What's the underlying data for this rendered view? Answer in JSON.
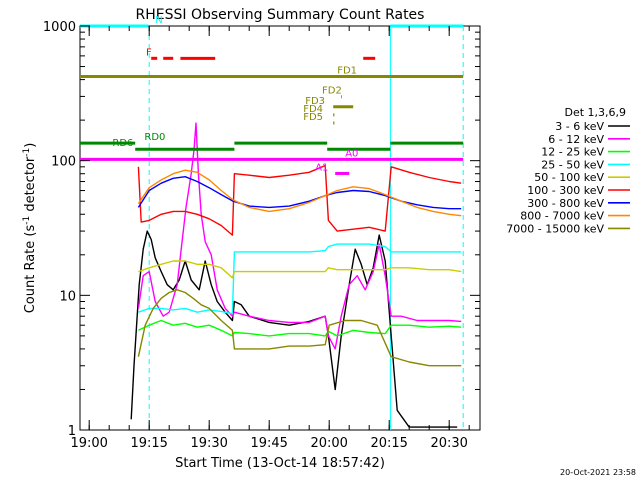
{
  "chart_data": {
    "type": "line",
    "title": "RHESSI Observing Summary Count Rates",
    "xlabel": "Start Time (13-Oct-14 18:57:42)",
    "ylabel_main": "Count Rate (s",
    "ylabel_sup1": "-1",
    "ylabel_mid": " detector",
    "ylabel_sup2": "-1",
    "ylabel_end": ")",
    "y_scale": "log",
    "ylim": [
      1,
      1000
    ],
    "x_minutes_range": [
      -2.3,
      97.7
    ],
    "y_ticks": [
      {
        "v": 1,
        "label": "1"
      },
      {
        "v": 10,
        "label": "10"
      },
      {
        "v": 100,
        "label": "100"
      },
      {
        "v": 1000,
        "label": "1000"
      }
    ],
    "x_ticks": [
      {
        "m": 0,
        "label": "19:00"
      },
      {
        "m": 15,
        "label": "19:15"
      },
      {
        "m": 30,
        "label": "19:30"
      },
      {
        "m": 45,
        "label": "19:45"
      },
      {
        "m": 60,
        "label": "20:00"
      },
      {
        "m": 75,
        "label": "20:15"
      },
      {
        "m": 90,
        "label": "20:30"
      }
    ],
    "legend_title": "Det 1,3,6,9",
    "legend_position": "right",
    "series": [
      {
        "name": "3 - 6 keV",
        "color": "#000000",
        "pts": [
          [
            10.5,
            1.2
          ],
          [
            11.2,
            3
          ],
          [
            12.5,
            12
          ],
          [
            13.5,
            22
          ],
          [
            14.5,
            30
          ],
          [
            15.5,
            26
          ],
          [
            16.5,
            19
          ],
          [
            18,
            15
          ],
          [
            19.5,
            12
          ],
          [
            21,
            11
          ],
          [
            22.5,
            13
          ],
          [
            24,
            18
          ],
          [
            25.5,
            13
          ],
          [
            27.5,
            11
          ],
          [
            29,
            18
          ],
          [
            30.5,
            12
          ],
          [
            32,
            9
          ],
          [
            34,
            7.5
          ],
          [
            35.8,
            6.5
          ],
          [
            36.3,
            9
          ],
          [
            38,
            8.5
          ],
          [
            40,
            7
          ],
          [
            45,
            6.3
          ],
          [
            50,
            6
          ],
          [
            55,
            6.4
          ],
          [
            59,
            7
          ],
          [
            59.8,
            5
          ],
          [
            61.5,
            2
          ],
          [
            63,
            5
          ],
          [
            65,
            12
          ],
          [
            66.5,
            22
          ],
          [
            68,
            17
          ],
          [
            69.5,
            12
          ],
          [
            71,
            16
          ],
          [
            72.5,
            28
          ],
          [
            74,
            18
          ],
          [
            75.5,
            5
          ],
          [
            77,
            1.4
          ],
          [
            80,
            1.05
          ],
          [
            84,
            1.05
          ],
          [
            88,
            1.05
          ],
          [
            92,
            1.05
          ]
        ]
      },
      {
        "name": "6 - 12 keV",
        "color": "#ff00ff",
        "pts": [
          [
            12.3,
            8
          ],
          [
            13.5,
            14
          ],
          [
            15,
            15
          ],
          [
            16.5,
            9
          ],
          [
            18.5,
            7
          ],
          [
            20,
            7.5
          ],
          [
            22,
            12
          ],
          [
            23,
            22
          ],
          [
            24.2,
            45
          ],
          [
            25.5,
            80
          ],
          [
            26.2,
            120
          ],
          [
            26.7,
            190
          ],
          [
            27.3,
            80
          ],
          [
            28,
            40
          ],
          [
            29,
            25
          ],
          [
            30.5,
            20
          ],
          [
            32,
            11
          ],
          [
            34,
            8
          ],
          [
            35.8,
            7
          ],
          [
            36.3,
            7.5
          ],
          [
            40,
            7
          ],
          [
            45,
            6.5
          ],
          [
            50,
            6.3
          ],
          [
            55,
            6.3
          ],
          [
            59,
            7
          ],
          [
            59.8,
            5
          ],
          [
            61.5,
            4
          ],
          [
            63,
            7
          ],
          [
            65,
            12
          ],
          [
            67,
            14
          ],
          [
            69,
            11
          ],
          [
            71,
            15
          ],
          [
            72.5,
            24
          ],
          [
            74,
            14
          ],
          [
            75.5,
            7
          ],
          [
            78,
            7
          ],
          [
            82,
            6.5
          ],
          [
            86,
            6.5
          ],
          [
            90,
            6.5
          ],
          [
            93,
            6.4
          ]
        ]
      },
      {
        "name": "12 - 25 keV",
        "color": "#00ff00",
        "pts": [
          [
            12.3,
            5.5
          ],
          [
            15,
            6
          ],
          [
            18,
            6.5
          ],
          [
            21,
            6
          ],
          [
            24,
            6.2
          ],
          [
            27,
            5.8
          ],
          [
            30,
            6
          ],
          [
            33,
            5.5
          ],
          [
            35.8,
            5
          ],
          [
            36.3,
            5.3
          ],
          [
            40,
            5.2
          ],
          [
            45,
            5
          ],
          [
            50,
            5.2
          ],
          [
            55,
            5.2
          ],
          [
            59,
            5
          ],
          [
            59.8,
            5.4
          ],
          [
            62,
            5
          ],
          [
            66,
            5.5
          ],
          [
            70,
            5.3
          ],
          [
            74,
            5.2
          ],
          [
            75.5,
            6
          ],
          [
            80,
            6
          ],
          [
            85,
            5.8
          ],
          [
            90,
            5.9
          ],
          [
            93,
            5.8
          ]
        ]
      },
      {
        "name": "25 - 50 keV",
        "color": "#00ffff",
        "pts": [
          [
            12.3,
            7.5
          ],
          [
            15,
            8
          ],
          [
            18,
            8
          ],
          [
            21,
            7.8
          ],
          [
            24,
            8
          ],
          [
            27,
            7.5
          ],
          [
            30,
            7.8
          ],
          [
            33,
            7.6
          ],
          [
            35.8,
            7.3
          ],
          [
            36.3,
            21
          ],
          [
            40,
            21
          ],
          [
            45,
            21
          ],
          [
            50,
            21
          ],
          [
            55,
            21
          ],
          [
            59,
            21.5
          ],
          [
            59.8,
            23
          ],
          [
            62,
            24
          ],
          [
            66,
            24
          ],
          [
            70,
            24
          ],
          [
            74,
            23
          ],
          [
            75.5,
            21
          ],
          [
            80,
            21
          ],
          [
            85,
            21
          ],
          [
            90,
            21
          ],
          [
            93,
            21
          ]
        ]
      },
      {
        "name": "50 - 100 keV",
        "color": "#cccc00",
        "pts": [
          [
            12.3,
            15
          ],
          [
            15,
            16
          ],
          [
            18,
            17
          ],
          [
            21,
            18
          ],
          [
            24,
            18
          ],
          [
            27,
            17
          ],
          [
            30,
            17
          ],
          [
            33,
            16
          ],
          [
            35.8,
            13.5
          ],
          [
            36.3,
            15
          ],
          [
            40,
            15
          ],
          [
            45,
            15
          ],
          [
            50,
            15
          ],
          [
            55,
            15
          ],
          [
            59,
            15
          ],
          [
            59.8,
            16
          ],
          [
            62,
            15.5
          ],
          [
            66,
            15.5
          ],
          [
            70,
            15.5
          ],
          [
            74,
            15.5
          ],
          [
            75.5,
            16
          ],
          [
            80,
            16
          ],
          [
            85,
            15.5
          ],
          [
            90,
            15.5
          ],
          [
            93,
            15
          ]
        ]
      },
      {
        "name": "100 - 300 keV",
        "color": "#ff0000",
        "pts": [
          [
            12.3,
            90
          ],
          [
            13,
            35
          ],
          [
            15,
            36
          ],
          [
            18,
            40
          ],
          [
            21,
            42
          ],
          [
            24,
            42
          ],
          [
            27,
            40
          ],
          [
            30,
            37
          ],
          [
            33,
            33
          ],
          [
            35.8,
            28
          ],
          [
            36.3,
            80
          ],
          [
            40,
            78
          ],
          [
            45,
            75
          ],
          [
            50,
            78
          ],
          [
            55,
            82
          ],
          [
            59,
            92
          ],
          [
            59.8,
            36
          ],
          [
            62,
            30
          ],
          [
            66,
            31
          ],
          [
            70,
            32
          ],
          [
            74,
            30
          ],
          [
            75.5,
            90
          ],
          [
            80,
            82
          ],
          [
            85,
            75
          ],
          [
            90,
            70
          ],
          [
            93,
            68
          ]
        ]
      },
      {
        "name": "300 - 800 keV",
        "color": "#0000ff",
        "pts": [
          [
            12.3,
            45
          ],
          [
            15,
            60
          ],
          [
            18,
            68
          ],
          [
            21,
            74
          ],
          [
            24,
            76
          ],
          [
            27,
            70
          ],
          [
            30,
            63
          ],
          [
            33,
            56
          ],
          [
            36,
            50
          ],
          [
            40,
            46
          ],
          [
            45,
            45
          ],
          [
            50,
            46
          ],
          [
            55,
            50
          ],
          [
            59,
            55
          ],
          [
            62,
            58
          ],
          [
            66,
            60
          ],
          [
            70,
            59
          ],
          [
            74,
            55
          ],
          [
            78,
            50
          ],
          [
            82,
            47
          ],
          [
            86,
            45
          ],
          [
            90,
            44
          ],
          [
            93,
            44
          ]
        ]
      },
      {
        "name": "800 - 7000 keV",
        "color": "#ff8800",
        "pts": [
          [
            12.3,
            48
          ],
          [
            15,
            63
          ],
          [
            18,
            72
          ],
          [
            21,
            80
          ],
          [
            24,
            85
          ],
          [
            27,
            82
          ],
          [
            30,
            72
          ],
          [
            33,
            60
          ],
          [
            36,
            51
          ],
          [
            40,
            45
          ],
          [
            45,
            42
          ],
          [
            50,
            44
          ],
          [
            55,
            49
          ],
          [
            59,
            55
          ],
          [
            62,
            60
          ],
          [
            66,
            64
          ],
          [
            70,
            62
          ],
          [
            74,
            56
          ],
          [
            78,
            50
          ],
          [
            82,
            45
          ],
          [
            86,
            42
          ],
          [
            90,
            40
          ],
          [
            93,
            39
          ]
        ]
      },
      {
        "name": "7000 - 15000 keV",
        "color": "#888800",
        "pts": [
          [
            12.3,
            3.5
          ],
          [
            14,
            6
          ],
          [
            16,
            8
          ],
          [
            18,
            9.5
          ],
          [
            20,
            10.5
          ],
          [
            22,
            11
          ],
          [
            24,
            10.5
          ],
          [
            26,
            9.5
          ],
          [
            28,
            8.5
          ],
          [
            30,
            8
          ],
          [
            33,
            6.5
          ],
          [
            35.8,
            5.5
          ],
          [
            36.3,
            4
          ],
          [
            40,
            4
          ],
          [
            45,
            4
          ],
          [
            50,
            4.2
          ],
          [
            55,
            4.2
          ],
          [
            59,
            4.3
          ],
          [
            60,
            6
          ],
          [
            64,
            6.5
          ],
          [
            68,
            6.5
          ],
          [
            72,
            6
          ],
          [
            75.5,
            3.5
          ],
          [
            80,
            3.2
          ],
          [
            85,
            3
          ],
          [
            90,
            3
          ],
          [
            93,
            3
          ]
        ]
      }
    ],
    "state_bars": [
      {
        "label": "N",
        "color": "#00ffff",
        "y": 1.0,
        "segs": [
          [
            -2.3,
            14.8
          ],
          [
            75.3,
            93.5
          ]
        ],
        "label_m": 16.5
      },
      {
        "label": "F",
        "color": "#ff0000",
        "y": 0.92,
        "segs": [
          [
            15.5,
            17
          ],
          [
            18.5,
            21
          ],
          [
            22.8,
            31.5
          ],
          [
            68.5,
            71.5
          ]
        ],
        "label_m": 14.2
      },
      {
        "label": "FD1",
        "color": "#888800",
        "y": 0.875,
        "segs": [
          [
            -2.3,
            93.5
          ]
        ],
        "label_m": 62
      },
      {
        "label": "FD2",
        "color": "#888800",
        "y": 0.825,
        "segs": [
          [
            63,
            63.2
          ]
        ],
        "label_m": 58.2
      },
      {
        "label": "FD3",
        "color": "#888800",
        "y": 0.8,
        "segs": [
          [
            61,
            66
          ]
        ],
        "label_m": 54
      },
      {
        "label": "FD4",
        "color": "#888800",
        "y": 0.78,
        "segs": [
          [
            61,
            61.3
          ]
        ],
        "label_m": 53.5
      },
      {
        "label": "FD5",
        "color": "#888800",
        "y": 0.76,
        "segs": [
          [
            61,
            61.3
          ]
        ],
        "label_m": 53.5
      },
      {
        "label": "RD0",
        "color": "#008800",
        "y": 0.71,
        "segs": [
          [
            -2.3,
            11.5
          ],
          [
            36.3,
            59.5
          ],
          [
            75.3,
            93.5
          ]
        ],
        "label_m": 13.8
      },
      {
        "label": "RD6",
        "color": "#008800",
        "y": 0.695,
        "segs": [
          [
            11.5,
            36.3
          ],
          [
            59.5,
            75.3
          ]
        ],
        "label_m": 5.8
      },
      {
        "label": "A0",
        "color": "#ff00ff",
        "y": 0.67,
        "segs": [
          [
            -2.3,
            93.5
          ]
        ],
        "label_m": 64
      },
      {
        "label": "A1",
        "color": "#ff00ff",
        "y": 0.635,
        "segs": [
          [
            61.5,
            65
          ]
        ],
        "label_m": 56.5
      }
    ],
    "vlines": [
      {
        "m": 15,
        "color": "#00ffff",
        "dashed": true
      },
      {
        "m": 75.3,
        "color": "#00ffff",
        "dashed": false
      },
      {
        "m": 93.5,
        "color": "#00ffff",
        "dashed": true
      }
    ]
  },
  "footer": {
    "date_stamp": "20-Oct-2021 23:58"
  }
}
